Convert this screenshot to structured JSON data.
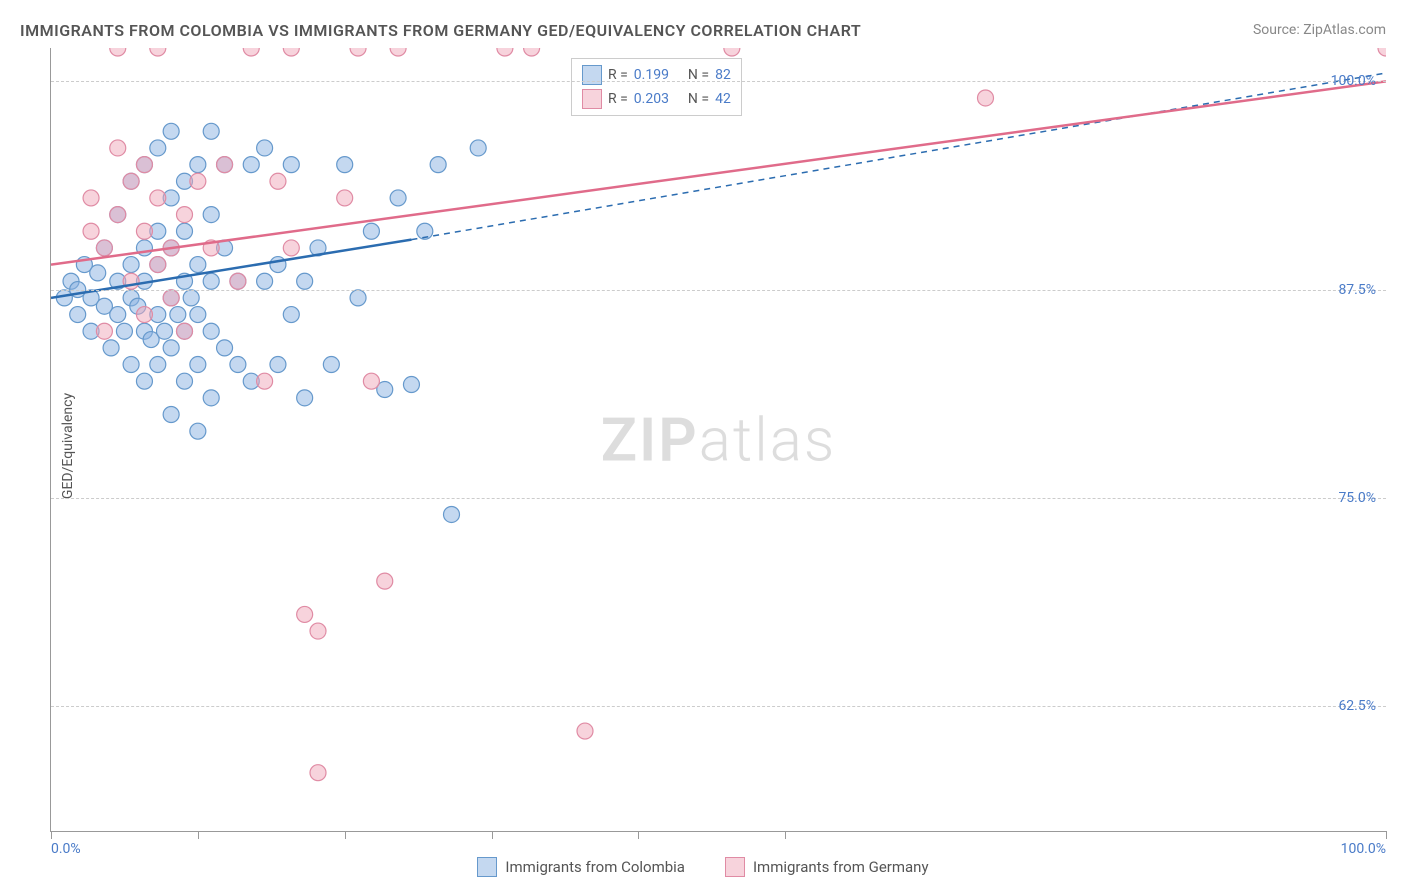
{
  "title": "IMMIGRANTS FROM COLOMBIA VS IMMIGRANTS FROM GERMANY GED/EQUIVALENCY CORRELATION CHART",
  "source_label": "Source:",
  "source_value": "ZipAtlas.com",
  "watermark": {
    "part1": "ZIP",
    "part2": "atlas"
  },
  "y_axis_label": "GED/Equivalency",
  "chart": {
    "type": "scatter",
    "xlim": [
      0,
      100
    ],
    "ylim": [
      55,
      102
    ],
    "x_ticks": [
      0,
      11,
      22,
      33,
      44,
      55,
      100
    ],
    "x_tick_labels": {
      "0": "0.0%",
      "100": "100.0%"
    },
    "y_ticks": [
      62.5,
      75.0,
      87.5,
      100.0
    ],
    "y_tick_labels": [
      "62.5%",
      "75.0%",
      "87.5%",
      "100.0%"
    ],
    "grid_color": "#cccccc",
    "background_color": "#ffffff",
    "series": [
      {
        "key": "colombia",
        "label": "Immigrants from Colombia",
        "color_fill": "rgba(137,177,225,0.5)",
        "color_stroke": "#6699cc",
        "line_color": "#2b6cb0",
        "R": "0.199",
        "N": "82",
        "trend": {
          "solid": [
            [
              0,
              87
            ],
            [
              27,
              90.5
            ]
          ],
          "dashed": [
            [
              27,
              90.5
            ],
            [
              100,
              100.5
            ]
          ]
        },
        "points": [
          [
            1,
            87
          ],
          [
            1.5,
            88
          ],
          [
            2,
            86
          ],
          [
            2,
            87.5
          ],
          [
            2.5,
            89
          ],
          [
            3,
            85
          ],
          [
            3,
            87
          ],
          [
            3.5,
            88.5
          ],
          [
            4,
            86.5
          ],
          [
            4,
            90
          ],
          [
            4.5,
            84
          ],
          [
            5,
            86
          ],
          [
            5,
            88
          ],
          [
            5,
            92
          ],
          [
            5.5,
            85
          ],
          [
            6,
            83
          ],
          [
            6,
            87
          ],
          [
            6,
            89
          ],
          [
            6,
            94
          ],
          [
            6.5,
            86.5
          ],
          [
            7,
            82
          ],
          [
            7,
            85
          ],
          [
            7,
            88
          ],
          [
            7,
            90
          ],
          [
            7,
            95
          ],
          [
            7.5,
            84.5
          ],
          [
            8,
            83
          ],
          [
            8,
            86
          ],
          [
            8,
            89
          ],
          [
            8,
            91
          ],
          [
            8,
            96
          ],
          [
            8.5,
            85
          ],
          [
            9,
            80
          ],
          [
            9,
            84
          ],
          [
            9,
            87
          ],
          [
            9,
            90
          ],
          [
            9,
            93
          ],
          [
            9,
            97
          ],
          [
            9.5,
            86
          ],
          [
            10,
            82
          ],
          [
            10,
            85
          ],
          [
            10,
            88
          ],
          [
            10,
            91
          ],
          [
            10,
            94
          ],
          [
            10.5,
            87
          ],
          [
            11,
            79
          ],
          [
            11,
            83
          ],
          [
            11,
            86
          ],
          [
            11,
            89
          ],
          [
            11,
            95
          ],
          [
            12,
            81
          ],
          [
            12,
            85
          ],
          [
            12,
            88
          ],
          [
            12,
            92
          ],
          [
            12,
            97
          ],
          [
            13,
            84
          ],
          [
            13,
            90
          ],
          [
            13,
            95
          ],
          [
            14,
            83
          ],
          [
            14,
            88
          ],
          [
            15,
            82
          ],
          [
            15,
            95
          ],
          [
            16,
            88
          ],
          [
            16,
            96
          ],
          [
            17,
            83
          ],
          [
            17,
            89
          ],
          [
            18,
            86
          ],
          [
            18,
            95
          ],
          [
            19,
            81
          ],
          [
            19,
            88
          ],
          [
            20,
            90
          ],
          [
            21,
            83
          ],
          [
            22,
            95
          ],
          [
            23,
            87
          ],
          [
            24,
            91
          ],
          [
            25,
            81.5
          ],
          [
            26,
            93
          ],
          [
            27,
            81.8
          ],
          [
            28,
            91
          ],
          [
            29,
            95
          ],
          [
            30,
            74
          ],
          [
            32,
            96
          ]
        ]
      },
      {
        "key": "germany",
        "label": "Immigrants from Germany",
        "color_fill": "rgba(240,168,186,0.5)",
        "color_stroke": "#e08ba4",
        "line_color": "#e06b8a",
        "R": "0.203",
        "N": "42",
        "trend": {
          "solid": [
            [
              0,
              89
            ],
            [
              100,
              100
            ]
          ],
          "dashed": []
        },
        "points": [
          [
            3,
            91
          ],
          [
            3,
            93
          ],
          [
            4,
            85
          ],
          [
            4,
            90
          ],
          [
            5,
            92
          ],
          [
            5,
            96
          ],
          [
            5,
            102
          ],
          [
            6,
            88
          ],
          [
            6,
            94
          ],
          [
            7,
            86
          ],
          [
            7,
            91
          ],
          [
            7,
            95
          ],
          [
            8,
            89
          ],
          [
            8,
            93
          ],
          [
            8,
            102
          ],
          [
            9,
            87
          ],
          [
            9,
            90
          ],
          [
            10,
            85
          ],
          [
            10,
            92
          ],
          [
            11,
            94
          ],
          [
            12,
            90
          ],
          [
            13,
            95
          ],
          [
            14,
            88
          ],
          [
            15,
            102
          ],
          [
            16,
            82
          ],
          [
            17,
            94
          ],
          [
            18,
            90
          ],
          [
            18,
            102
          ],
          [
            19,
            68
          ],
          [
            20,
            67
          ],
          [
            20,
            58.5
          ],
          [
            22,
            93
          ],
          [
            23,
            102
          ],
          [
            24,
            82
          ],
          [
            25,
            70
          ],
          [
            26,
            102
          ],
          [
            34,
            102
          ],
          [
            36,
            102
          ],
          [
            40,
            61
          ],
          [
            51,
            102
          ],
          [
            70,
            99
          ],
          [
            100,
            102
          ]
        ]
      }
    ]
  },
  "legend_top": {
    "r_label": "R =",
    "n_label": "N ="
  }
}
